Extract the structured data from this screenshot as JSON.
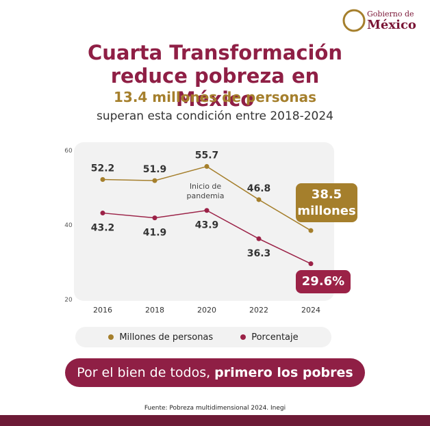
{
  "logo": {
    "line1": "Gobierno de",
    "line2": "México"
  },
  "chart_data": {
    "type": "line",
    "title": "Cuarta Transformación reduce pobreza en México",
    "subtitle": "13.4 millones de personas",
    "caption": "superan esta condición entre 2018-2024",
    "categories": [
      "2016",
      "2018",
      "2020",
      "2022",
      "2024"
    ],
    "series": [
      {
        "name": "Millones de personas",
        "color": "#a57f2c",
        "values": [
          52.2,
          51.9,
          55.7,
          46.8,
          38.5
        ],
        "value_labels": [
          "52.2",
          "51.9",
          "55.7",
          "46.8",
          "38.5 millones"
        ]
      },
      {
        "name": "Porcentaje",
        "color": "#9b2247",
        "values": [
          43.2,
          41.9,
          43.9,
          36.3,
          29.6
        ],
        "value_labels": [
          "43.2",
          "41.9",
          "43.9",
          "36.3",
          "29.6%"
        ]
      }
    ],
    "ylim": [
      20,
      60
    ],
    "yticks": [
      20,
      40,
      60
    ],
    "annotation": "Inicio de pandemia"
  },
  "banner": {
    "regular": "Por el bien de todos,",
    "bold": "primero los pobres"
  },
  "source": "Fuente: Pobreza multidimensional 2024. Inegi"
}
